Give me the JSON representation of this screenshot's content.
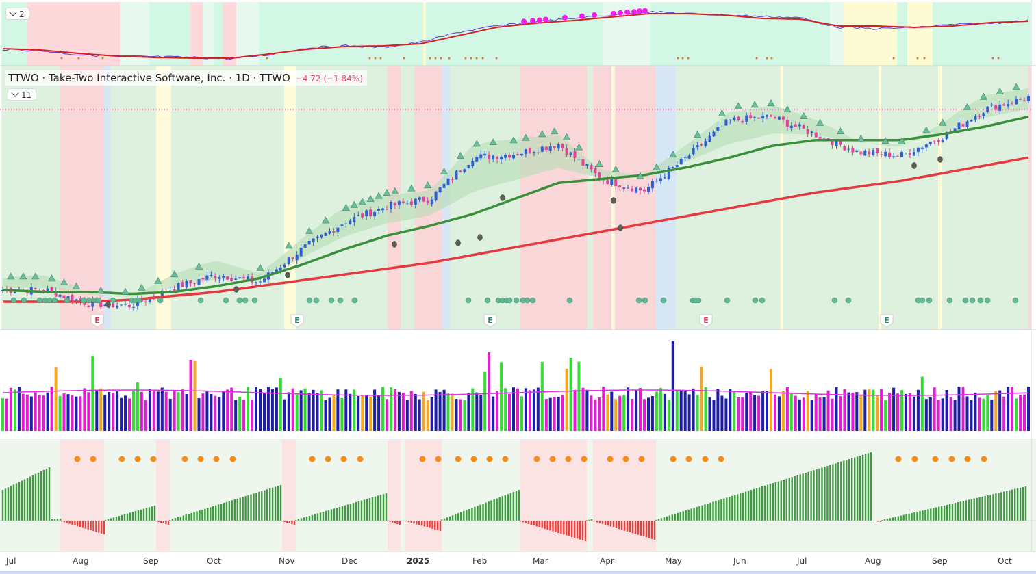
{
  "symbol": "TTWO",
  "legend": {
    "text": "TTWO · Take-Two Interactive Software, Inc. · 1D · TTWO",
    "change": "−4.72 (−1.84%)"
  },
  "pane_badges": {
    "top": "2",
    "main": "11"
  },
  "colors": {
    "up": "#2f5fd0",
    "down": "#e2439a",
    "sma50": "#3a8f3a",
    "sma200": "#e6393f",
    "vol_green": "#33dd33",
    "vol_blue": "#1e1eaa",
    "vol_magenta": "#e020d0",
    "vol_orange": "#f5a623",
    "osc_pos": "#3e9a3e",
    "osc_neg": "#e8423f"
  },
  "icons": [
    "triangle-up-marker-icon",
    "dot-marker-icon",
    "earnings-flag-icon",
    "chevron-down-icon"
  ],
  "earnings_flags": [
    "E",
    "E",
    "E",
    "E",
    "E"
  ],
  "chart_data": {
    "type": "line",
    "title": "TTWO · Take-Two Interactive Software, Inc. · 1D · TTWO",
    "x_ticks": [
      "Jul",
      "Aug",
      "Sep",
      "Oct",
      "Nov",
      "Dec",
      "2025",
      "Feb",
      "Mar",
      "Apr",
      "May",
      "Jun",
      "Jul",
      "Aug",
      "Sep",
      "Oct"
    ],
    "series": [
      {
        "values": [
          157,
          157,
          150,
          149,
          158,
          165,
          161,
          178,
          192,
          200,
          204,
          225,
          227,
          232,
          214,
          208,
          225,
          244,
          246,
          237,
          228,
          226,
          236,
          250,
          256
        ]
      },
      {
        "values": [
          157,
          156,
          156,
          155,
          156,
          159,
          163,
          170,
          178,
          185,
          190,
          196,
          204,
          212,
          214,
          216,
          220,
          225,
          231,
          234,
          234,
          234,
          237,
          241,
          246
        ]
      },
      {
        "values": [
          151,
          151,
          151,
          152,
          154,
          156,
          159,
          162,
          165,
          168,
          171,
          175,
          179,
          183,
          187,
          191,
          195,
          199,
          203,
          207,
          210,
          213,
          217,
          221,
          225
        ]
      }
    ],
    "earnings": [
      "E",
      "E",
      "E",
      "E",
      "E"
    ]
  }
}
